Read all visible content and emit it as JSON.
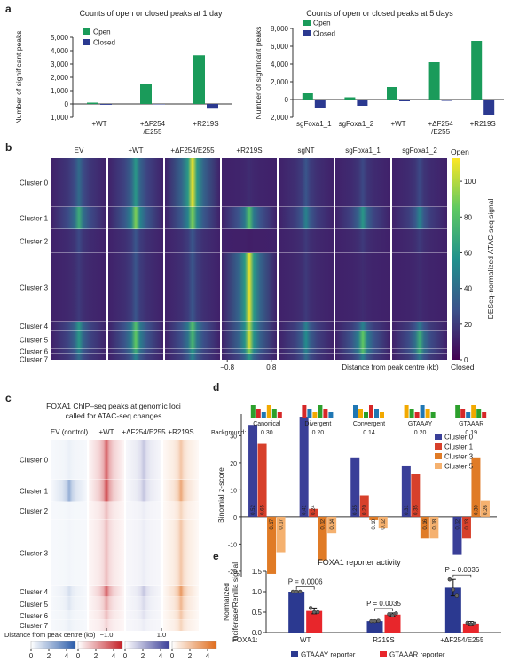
{
  "chart_data": [
    {
      "type": "bar",
      "label": "a",
      "title": "Counts of open or closed peaks at 1 day",
      "ylabel": "Number of significant peaks",
      "categories": [
        "+WT",
        "+ΔF254/E255",
        "+R219S"
      ],
      "category_colors": [
        "#e02a3b",
        "#19a9a6",
        "#e8402a"
      ],
      "series": [
        {
          "name": "Open",
          "color": "#1a9b5a",
          "values": [
            100,
            1500,
            3650
          ]
        },
        {
          "name": "Closed",
          "color": "#2b3990",
          "values": [
            -60,
            -30,
            -350
          ]
        }
      ],
      "ylim": [
        -1000,
        5000
      ],
      "yticks": [
        {
          "value": -1000,
          "label": "1,000"
        },
        0,
        {
          "value": 1000,
          "label": "1,000"
        },
        {
          "value": 2000,
          "label": "2,000"
        },
        {
          "value": 3000,
          "label": "3,000"
        },
        {
          "value": 4000,
          "label": "4,000"
        },
        {
          "value": 5000,
          "label": "5,000"
        }
      ],
      "legend": "upper left"
    },
    {
      "type": "bar",
      "title": "Counts of open or closed peaks at 5 days",
      "ylabel": "Number of significant peaks",
      "categories": [
        "sgFoxa1_1",
        "sgFoxa1_2",
        "+WT",
        "+ΔF254/E255",
        "+R219S"
      ],
      "category_colors": [
        "#222222",
        "#222222",
        "#e02a3b",
        "#19a9a6",
        "#e8402a"
      ],
      "series": [
        {
          "name": "Open",
          "color": "#1a9b5a",
          "values": [
            700,
            250,
            1400,
            4200,
            6600
          ]
        },
        {
          "name": "Closed",
          "color": "#2b3990",
          "values": [
            -900,
            -700,
            -200,
            -150,
            -1700
          ]
        }
      ],
      "ylim": [
        -2000,
        8000
      ],
      "yticks": [
        {
          "value": -2000,
          "label": "2,000"
        },
        0,
        {
          "value": 2000,
          "label": "2,000"
        },
        {
          "value": 4000,
          "label": "4,000"
        },
        {
          "value": 6000,
          "label": "6,000"
        },
        {
          "value": 8000,
          "label": "8,000"
        }
      ],
      "legend": "upper left"
    },
    {
      "type": "heatmap",
      "label": "b",
      "colormap": "viridis",
      "columns": [
        "EV",
        "+WT",
        "+ΔF254/E255",
        "+R219S",
        "sgNT",
        "sgFoxa1_1",
        "sgFoxa1_2"
      ],
      "column_colors": [
        "#2b3990",
        "#e02a3b",
        "#19a9a6",
        "#e8402a",
        "#222222",
        "#222222",
        "#222222"
      ],
      "rows": [
        "Cluster 0",
        "Cluster 1",
        "Cluster 2",
        "Cluster 3",
        "Cluster 4",
        "Cluster 5",
        "Cluster 6",
        "Cluster 7"
      ],
      "signal": [
        [
          40,
          70,
          25,
          20,
          60,
          60,
          50,
          40
        ],
        [
          60,
          90,
          30,
          30,
          80,
          85,
          70,
          50
        ],
        [
          110,
          90,
          30,
          30,
          80,
          75,
          60,
          50
        ],
        [
          15,
          80,
          10,
          110,
          100,
          105,
          90,
          60
        ],
        [
          30,
          50,
          20,
          20,
          50,
          55,
          50,
          40
        ],
        [
          25,
          60,
          20,
          15,
          50,
          85,
          80,
          50
        ],
        [
          25,
          50,
          20,
          15,
          45,
          70,
          70,
          45
        ]
      ],
      "clim": [
        0,
        113
      ],
      "cticks": [
        0,
        20,
        40,
        60,
        80,
        100
      ],
      "clabel": "DESeq-normalized ATAC-seq signal",
      "ctop": "Open",
      "cbottom": "Closed",
      "xlim": [
        -1,
        1
      ],
      "xticks": [
        {
          "value": -0.8,
          "label": "−0.8"
        },
        0.8
      ],
      "xlabel": "Distance from peak centre (kb)"
    },
    {
      "type": "heatmap",
      "label": "c",
      "title": [
        "FOXA1 ChIP–seq peaks at genomic loci",
        "called for ATAC-seq changes"
      ],
      "columns": [
        "EV (control)",
        "+WT",
        "+ΔF254/E255",
        "+R219S"
      ],
      "colors": [
        "#2a5caa",
        "#c42026",
        "#3b3f99",
        "#e06b1a"
      ],
      "rows": [
        "Cluster 0",
        "Cluster 1",
        "Cluster 2",
        "Cluster 3",
        "Cluster 4",
        "Cluster 5",
        "Cluster 6",
        "Cluster 7"
      ],
      "signal": [
        [
          0.5,
          2.5,
          0.3,
          0.3,
          1,
          0.8,
          0.5,
          0.5
        ],
        [
          3.5,
          4,
          1.5,
          1.5,
          3.5,
          2,
          1.5,
          1
        ],
        [
          1.5,
          1.5,
          0.5,
          0.5,
          1.5,
          1,
          0.8,
          0.5
        ],
        [
          2,
          3,
          1.5,
          2,
          3.5,
          2.5,
          2,
          1.5
        ]
      ],
      "clim": [
        0,
        5
      ],
      "cticks": [
        0,
        2,
        4
      ],
      "xlim": [
        -1,
        1
      ],
      "xticks": [
        {
          "value": -1,
          "label": "−1.0"
        },
        {
          "value": 1,
          "label": "1.0"
        }
      ],
      "xlabel": "Distance from peak centre (kb)"
    },
    {
      "type": "bar",
      "label": "d",
      "ylabel": "Binomial z-score",
      "categories": [
        "Canonical",
        "Divergent",
        "Convergent",
        "GTAAAY",
        "GTAAAR"
      ],
      "background_label": "Background:",
      "background": [
        "0.30",
        "0.20",
        "0.14",
        "0.20",
        "0.19"
      ],
      "series": [
        {
          "name": "Cluster 0",
          "color": "#3a3f98",
          "values": [
            34,
            37,
            22,
            19,
            -14
          ],
          "fraction_labels": [
            "0.52",
            "0.41",
            "0.25",
            "0.31",
            "0.12"
          ]
        },
        {
          "name": "Cluster 1",
          "color": "#d7402b",
          "values": [
            27,
            3,
            8,
            16,
            -8
          ],
          "fraction_labels": [
            "0.65",
            "0.24",
            "0.20",
            "0.35",
            "0.13"
          ]
        },
        {
          "name": "Cluster 3",
          "color": "#e07b26",
          "values": [
            -21,
            -16,
            -1,
            -8,
            22
          ],
          "fraction_labels": [
            "0.17",
            "0.12",
            "0.10",
            "0.16",
            "0.30"
          ]
        },
        {
          "name": "Cluster 5",
          "color": "#f5b16f",
          "values": [
            -13,
            -6,
            -4,
            -8,
            6
          ],
          "fraction_labels": [
            "0.17",
            "0.14",
            "0.12",
            "0.18",
            "0.26"
          ]
        }
      ],
      "ylim": [
        -22,
        38
      ],
      "yticks": [
        -20,
        -10,
        0,
        10,
        20,
        30
      ],
      "legend": "upper right"
    },
    {
      "type": "bar",
      "label": "e",
      "title": "FOXA1 reporter activity",
      "ylabel": [
        "Normalized",
        "luciferase/Renilla signal"
      ],
      "group_label": "FOXA1:",
      "categories": [
        "WT",
        "R219S",
        "+ΔF254/E255"
      ],
      "category_colors": [
        "#e02a3b",
        "#e02a3b",
        "#19a9a6"
      ],
      "series": [
        {
          "name": "GTAAAY reporter",
          "color": "#2b3990",
          "values": [
            1.0,
            0.28,
            1.1
          ],
          "errors": [
            0.01,
            0.02,
            0.2
          ],
          "points": [
            [
              1.0,
              1.0,
              1.0
            ],
            [
              0.28,
              0.28,
              0.29
            ],
            [
              1.3,
              1.05,
              0.9
            ]
          ]
        },
        {
          "name": "GTAAAR reporter",
          "color": "#e8262b",
          "values": [
            0.53,
            0.44,
            0.22
          ],
          "errors": [
            0.07,
            0.04,
            0.05
          ],
          "points": [
            [
              0.6,
              0.5,
              0.5
            ],
            [
              0.45,
              0.42,
              0.47
            ],
            [
              0.24,
              0.2,
              0.22
            ]
          ]
        }
      ],
      "annotations": [
        "P = 0.0006",
        "P = 0.0035",
        "P = 0.0036"
      ],
      "ylim": [
        0,
        1.5
      ],
      "yticks": [
        {
          "value": 0,
          "label": "0.0"
        },
        0.5,
        {
          "value": 1,
          "label": "1.0"
        },
        1.5
      ],
      "legend": "bottom"
    }
  ]
}
